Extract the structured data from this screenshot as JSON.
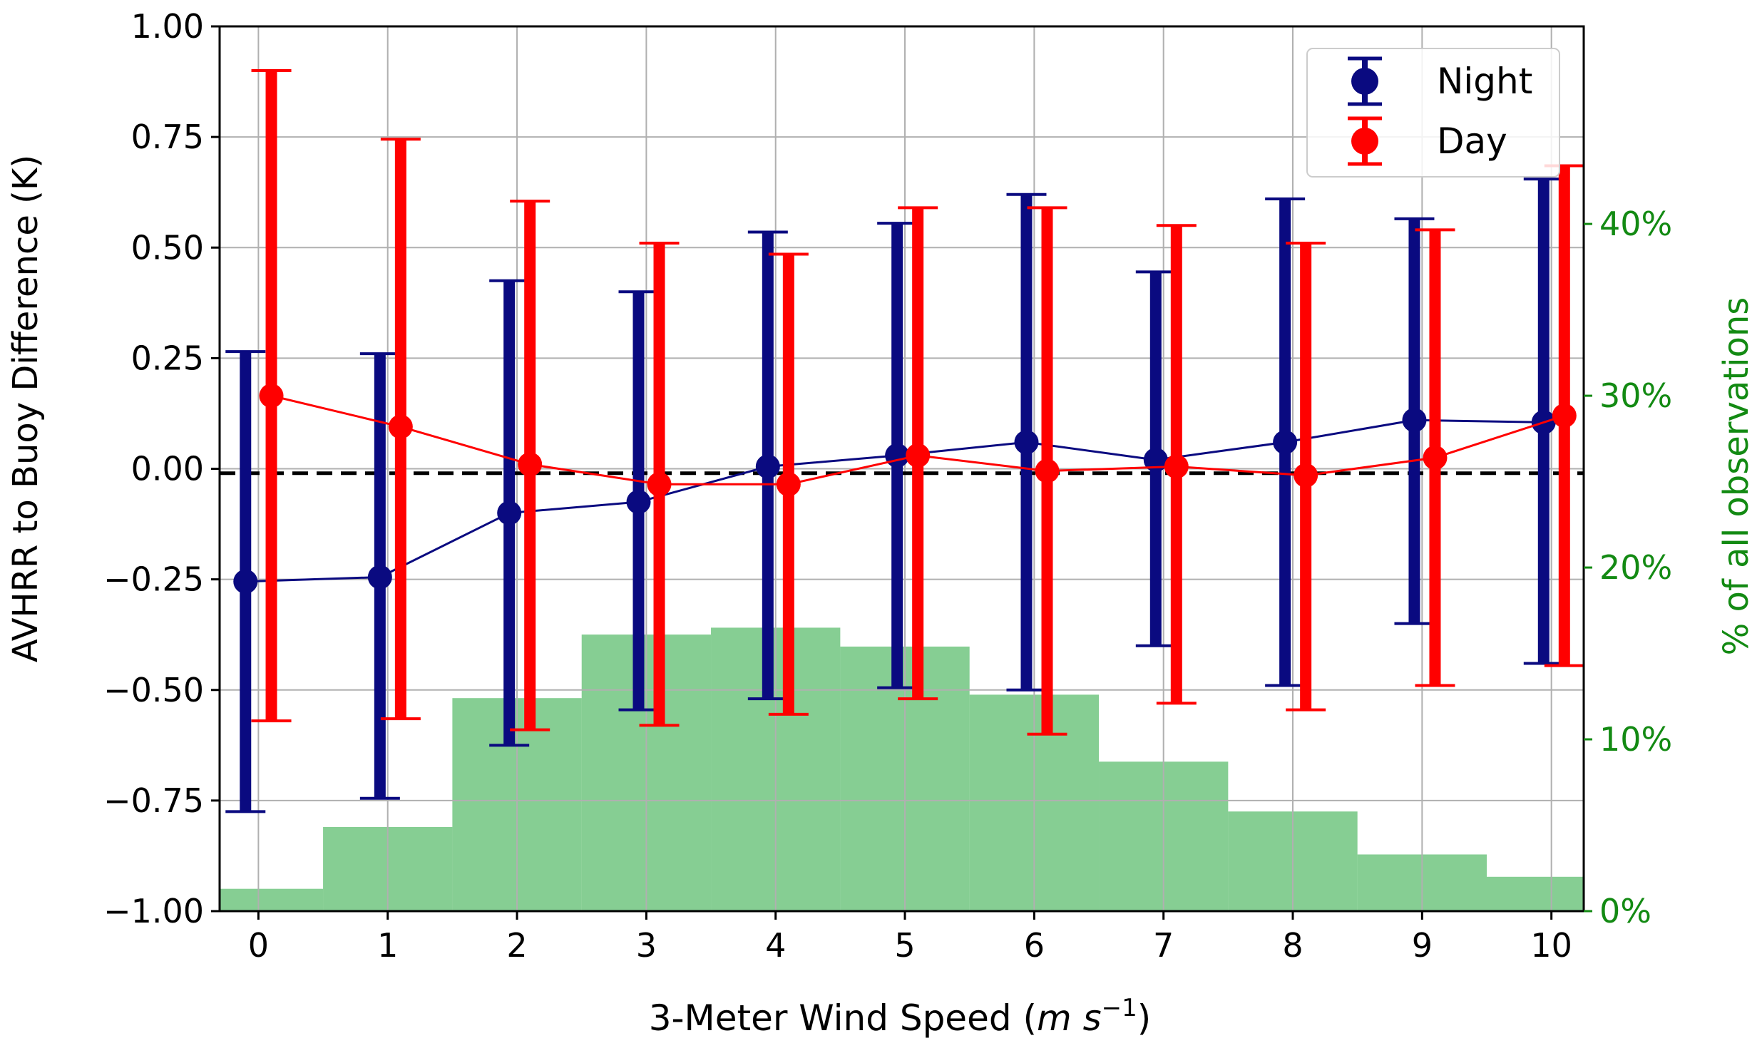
{
  "chart_data": {
    "type": "line",
    "title": "",
    "xlabel": "3-Meter Wind Speed",
    "xlabel_unit_italic": "m s",
    "xlabel_unit_superscript": "−1",
    "ylabel": "AVHRR to Buoy Difference (K)",
    "ylabel_right": "% of all observations",
    "grid": true,
    "legend_position": "top-right",
    "xlim": [
      -0.3,
      10.25
    ],
    "ylim": [
      -1.0,
      1.0
    ],
    "ylim_right": [
      0,
      51.5
    ],
    "x_ticks": [
      0,
      1,
      2,
      3,
      4,
      5,
      6,
      7,
      8,
      9,
      10
    ],
    "x_tick_labels": [
      "0",
      "1",
      "2",
      "3",
      "4",
      "5",
      "6",
      "7",
      "8",
      "9",
      "10"
    ],
    "y_ticks": [
      1.0,
      0.75,
      0.5,
      0.25,
      0.0,
      -0.25,
      -0.5,
      -0.75,
      -1.0
    ],
    "y_tick_labels": [
      "1.00",
      "0.75",
      "0.50",
      "0.25",
      "0.00",
      "−0.25",
      "−0.50",
      "−0.75",
      "−1.00"
    ],
    "y_right_ticks": [
      0,
      10,
      20,
      30,
      40
    ],
    "y_right_tick_labels": [
      "0%",
      "10%",
      "20%",
      "30%",
      "40%"
    ],
    "reference_line": {
      "y": -0.01,
      "style": "dashed",
      "color": "#000000"
    },
    "series": [
      {
        "name": "Night",
        "color": "#0a0a80",
        "x": [
          -0.1,
          0.94,
          1.94,
          2.94,
          3.94,
          4.94,
          5.94,
          6.94,
          7.94,
          8.94,
          9.94
        ],
        "values": [
          -0.255,
          -0.245,
          -0.1,
          -0.075,
          0.005,
          0.03,
          0.06,
          0.02,
          0.06,
          0.11,
          0.105
        ],
        "err_low": [
          -0.775,
          -0.745,
          -0.625,
          -0.545,
          -0.52,
          -0.495,
          -0.5,
          -0.4,
          -0.49,
          -0.35,
          -0.44
        ],
        "err_high": [
          0.265,
          0.26,
          0.425,
          0.4,
          0.535,
          0.555,
          0.62,
          0.445,
          0.61,
          0.565,
          0.655
        ]
      },
      {
        "name": "Day",
        "color": "#ff0000",
        "x": [
          0.1,
          1.1,
          2.1,
          3.1,
          4.1,
          5.1,
          6.1,
          7.1,
          8.1,
          9.1,
          10.1
        ],
        "values": [
          0.165,
          0.095,
          0.01,
          -0.035,
          -0.035,
          0.03,
          -0.005,
          0.005,
          -0.015,
          0.025,
          0.12
        ],
        "err_low": [
          -0.57,
          -0.565,
          -0.59,
          -0.58,
          -0.555,
          -0.52,
          -0.6,
          -0.53,
          -0.545,
          -0.49,
          -0.445
        ],
        "err_high": [
          0.9,
          0.745,
          0.605,
          0.51,
          0.485,
          0.59,
          0.59,
          0.55,
          0.51,
          0.54,
          0.685
        ]
      }
    ],
    "histogram": {
      "name": "% of all observations",
      "color": "#3cb050",
      "axis": "right",
      "bin_edges": [
        -0.3,
        0.5,
        1.5,
        2.5,
        3.5,
        4.5,
        5.5,
        6.5,
        7.5,
        8.5,
        9.5,
        10.25
      ],
      "values_percent": [
        1.3,
        4.9,
        12.4,
        16.1,
        16.5,
        15.4,
        12.6,
        8.7,
        5.8,
        3.3,
        2.0
      ]
    }
  }
}
